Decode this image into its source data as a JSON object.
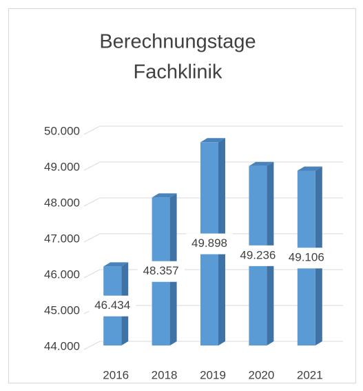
{
  "chart_data": {
    "type": "bar3d",
    "title": [
      "Berechnungstage",
      "Fachklinik"
    ],
    "categories": [
      "2016",
      "2018",
      "2019",
      "2020",
      "2021"
    ],
    "values": [
      46434,
      48357,
      49898,
      49236,
      49106
    ],
    "value_labels": [
      "46.434",
      "48.357",
      "49.898",
      "49.236",
      "49.106"
    ],
    "color": "#5b9bd5",
    "ylim": [
      44000,
      50000
    ],
    "yticks": [
      {
        "value": 44000,
        "label": "44.000"
      },
      {
        "value": 45000,
        "label": "45.000"
      },
      {
        "value": 46000,
        "label": "46.000"
      },
      {
        "value": 47000,
        "label": "47.000"
      },
      {
        "value": 48000,
        "label": "48.000"
      },
      {
        "value": 49000,
        "label": "49.000"
      },
      {
        "value": 50000,
        "label": "50.000"
      }
    ],
    "grid": true
  }
}
